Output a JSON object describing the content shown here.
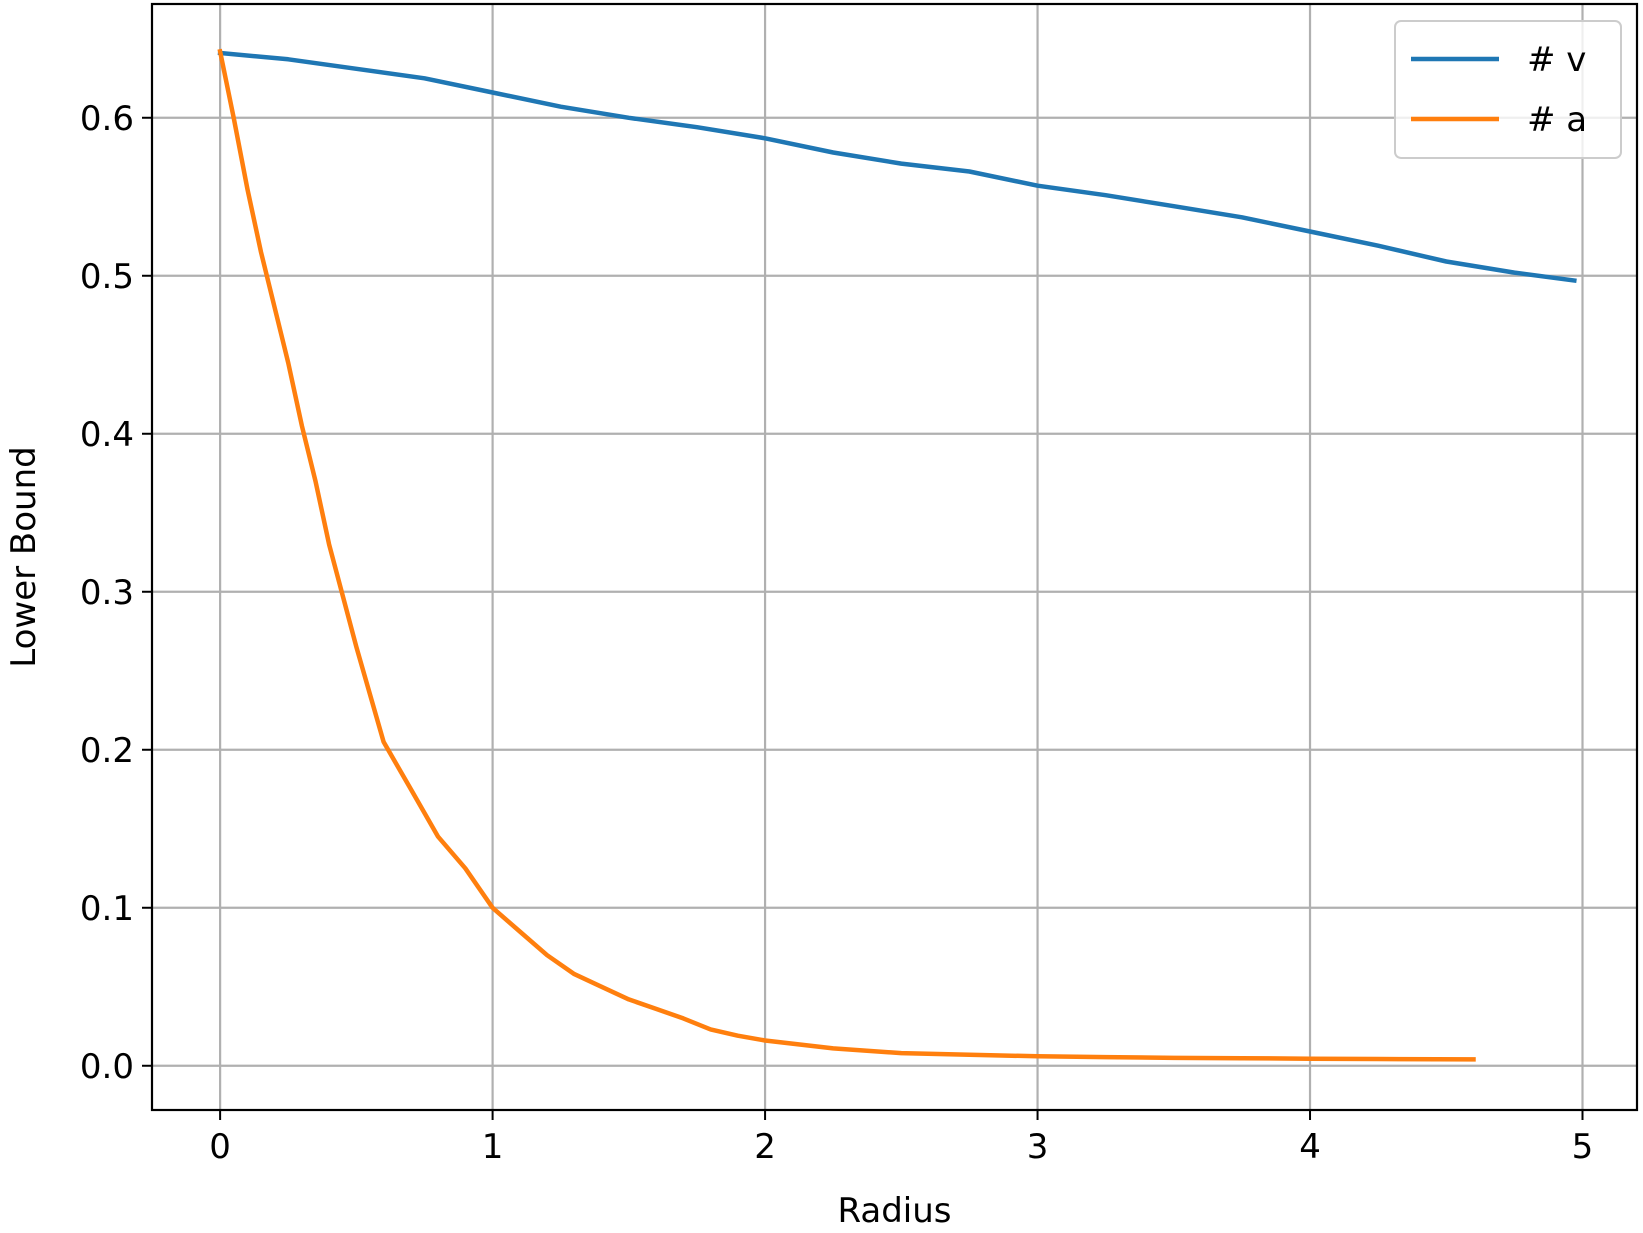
{
  "chart_data": {
    "type": "line",
    "title": "",
    "xlabel": "Radius",
    "ylabel": "Lower Bound",
    "xlim": [
      -0.25,
      5.2
    ],
    "ylim": [
      -0.028,
      0.672
    ],
    "xticks": [
      0,
      1,
      2,
      3,
      4,
      5
    ],
    "xtick_labels": [
      "0",
      "1",
      "2",
      "3",
      "4",
      "5"
    ],
    "yticks": [
      0.0,
      0.1,
      0.2,
      0.3,
      0.4,
      0.5,
      0.6
    ],
    "ytick_labels": [
      "0.0",
      "0.1",
      "0.2",
      "0.3",
      "0.4",
      "0.5",
      "0.6"
    ],
    "grid": true,
    "legend_position": "top-right",
    "series": [
      {
        "name": "# v",
        "color": "#1f77b4",
        "x": [
          0.0,
          0.25,
          0.5,
          0.75,
          1.0,
          1.25,
          1.5,
          1.75,
          2.0,
          2.25,
          2.5,
          2.75,
          3.0,
          3.25,
          3.5,
          3.75,
          4.0,
          4.25,
          4.5,
          4.75,
          4.97
        ],
        "y": [
          0.641,
          0.637,
          0.631,
          0.625,
          0.616,
          0.607,
          0.6,
          0.594,
          0.587,
          0.578,
          0.571,
          0.566,
          0.557,
          0.551,
          0.544,
          0.537,
          0.528,
          0.519,
          0.509,
          0.502,
          0.497
        ]
      },
      {
        "name": "# a",
        "color": "#ff7f0e",
        "x": [
          0.0,
          0.05,
          0.1,
          0.15,
          0.2,
          0.25,
          0.3,
          0.35,
          0.4,
          0.5,
          0.6,
          0.7,
          0.8,
          0.9,
          1.0,
          1.1,
          1.2,
          1.3,
          1.4,
          1.5,
          1.6,
          1.7,
          1.8,
          1.9,
          2.0,
          2.25,
          2.5,
          2.75,
          3.0,
          3.25,
          3.5,
          3.75,
          4.0,
          4.25,
          4.6
        ],
        "y": [
          0.642,
          0.6,
          0.555,
          0.515,
          0.48,
          0.445,
          0.405,
          0.37,
          0.33,
          0.265,
          0.205,
          0.175,
          0.145,
          0.125,
          0.1,
          0.085,
          0.07,
          0.058,
          0.05,
          0.042,
          0.036,
          0.03,
          0.023,
          0.019,
          0.016,
          0.011,
          0.008,
          0.007,
          0.006,
          0.0055,
          0.005,
          0.0048,
          0.0045,
          0.0043,
          0.004
        ]
      }
    ]
  }
}
